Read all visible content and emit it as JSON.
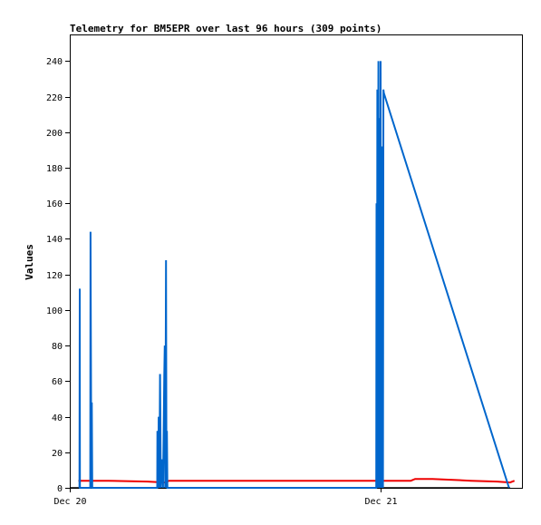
{
  "chart_data": {
    "type": "line",
    "title": "Telemetry for BM5EPR over last 96 hours (309 points)",
    "xlabel": "",
    "ylabel": "Values",
    "ylim": [
      0,
      255
    ],
    "yticks": [
      0,
      20,
      40,
      60,
      80,
      100,
      120,
      140,
      160,
      180,
      200,
      220,
      240
    ],
    "x_start": "2023-12-20T00:00",
    "x_end": "2023-12-21T11:10",
    "x_ticks": [
      {
        "label": "Dec 20",
        "x": "2023-12-20T00:00"
      },
      {
        "label": "Dec 21",
        "x": "2023-12-21T00:00"
      }
    ],
    "grid": false,
    "series": [
      {
        "color": "#000000",
        "points": [
          [
            "2023-12-20T00:00",
            0
          ],
          [
            "2023-12-21T10:00",
            0
          ]
        ]
      },
      {
        "color": "#ee0000",
        "points": [
          [
            "2023-12-20T00:40",
            4
          ],
          [
            "2023-12-20T03:00",
            4
          ],
          [
            "2023-12-20T06:00",
            3.5
          ],
          [
            "2023-12-20T07:20",
            3
          ],
          [
            "2023-12-20T07:40",
            4
          ],
          [
            "2023-12-20T18:00",
            4
          ],
          [
            "2023-12-21T00:00",
            4
          ],
          [
            "2023-12-21T02:20",
            4
          ],
          [
            "2023-12-21T02:40",
            5
          ],
          [
            "2023-12-21T04:00",
            5
          ],
          [
            "2023-12-21T07:00",
            4
          ],
          [
            "2023-12-21T09:00",
            3.5
          ],
          [
            "2023-12-21T10:00",
            3
          ],
          [
            "2023-12-21T10:20",
            4
          ]
        ]
      },
      {
        "color": "#0066cc",
        "points": [
          [
            "2023-12-20T00:45",
            0
          ],
          [
            "2023-12-20T00:46",
            112
          ],
          [
            "2023-12-20T00:47",
            0
          ],
          [
            "2023-12-20T01:35",
            0
          ],
          [
            "2023-12-20T01:36",
            144
          ],
          [
            "2023-12-20T01:40",
            0
          ],
          [
            "2023-12-20T01:42",
            48
          ],
          [
            "2023-12-20T01:44",
            0
          ],
          [
            "2023-12-20T06:45",
            0
          ],
          [
            "2023-12-20T06:46",
            32
          ],
          [
            "2023-12-20T06:50",
            0
          ],
          [
            "2023-12-20T06:52",
            40
          ],
          [
            "2023-12-20T06:55",
            0
          ],
          [
            "2023-12-20T06:58",
            64
          ],
          [
            "2023-12-20T07:02",
            0
          ],
          [
            "2023-12-20T07:05",
            16
          ],
          [
            "2023-12-20T07:08",
            10
          ],
          [
            "2023-12-20T07:12",
            0
          ],
          [
            "2023-12-20T07:15",
            32
          ],
          [
            "2023-12-20T07:18",
            64
          ],
          [
            "2023-12-20T07:20",
            80
          ],
          [
            "2023-12-20T07:22",
            0
          ],
          [
            "2023-12-20T07:24",
            64
          ],
          [
            "2023-12-20T07:26",
            128
          ],
          [
            "2023-12-20T07:28",
            0
          ],
          [
            "2023-12-20T07:30",
            32
          ],
          [
            "2023-12-20T07:32",
            0
          ],
          [
            "2023-12-20T23:40",
            0
          ],
          [
            "2023-12-20T23:41",
            160
          ],
          [
            "2023-12-20T23:43",
            0
          ],
          [
            "2023-12-20T23:45",
            224
          ],
          [
            "2023-12-20T23:47",
            0
          ],
          [
            "2023-12-20T23:49",
            192
          ],
          [
            "2023-12-20T23:50",
            240
          ],
          [
            "2023-12-20T23:52",
            0
          ],
          [
            "2023-12-20T23:54",
            208
          ],
          [
            "2023-12-20T23:56",
            64
          ],
          [
            "2023-12-20T23:58",
            0
          ],
          [
            "2023-12-21T00:00",
            240
          ],
          [
            "2023-12-21T00:03",
            0
          ],
          [
            "2023-12-21T00:05",
            192
          ],
          [
            "2023-12-21T00:07",
            0
          ],
          [
            "2023-12-21T00:09",
            96
          ],
          [
            "2023-12-21T00:11",
            0
          ],
          [
            "2023-12-21T00:13",
            224
          ],
          [
            "2023-12-21T00:15",
            222
          ],
          [
            "2023-12-21T09:55",
            0
          ]
        ]
      }
    ]
  }
}
